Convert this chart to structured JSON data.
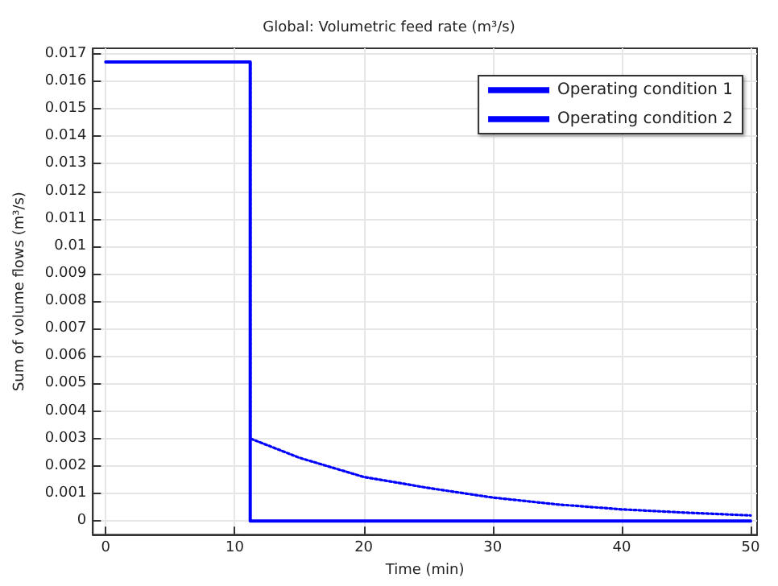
{
  "chart_data": {
    "type": "line",
    "title": "Global: Volumetric feed rate (m³/s)",
    "xlabel": "Time (min)",
    "ylabel": "Sum of volume flows (m³/s)",
    "series": [
      {
        "name": "Operating condition 1",
        "color": "#0000ff",
        "line_style": "solid",
        "x": [
          0,
          11.2,
          11.2,
          50
        ],
        "values": [
          0.0167,
          0.0167,
          0,
          0
        ]
      },
      {
        "name": "Operating condition 2",
        "color": "#0000ff",
        "line_style": "dotted",
        "x": [
          0,
          11.2,
          11.2,
          15,
          20,
          25,
          30,
          35,
          40,
          45,
          50
        ],
        "values": [
          0.0167,
          0.0167,
          0.003,
          0.0023,
          0.0016,
          0.0012,
          0.00085,
          0.0006,
          0.00042,
          0.0003,
          0.0002
        ]
      }
    ],
    "xlim": [
      -1,
      50.5
    ],
    "xticks": [
      0,
      10,
      20,
      30,
      40,
      50
    ],
    "ylim": [
      -0.0005,
      0.0172
    ],
    "yticks": [
      0,
      0.001,
      0.002,
      0.003,
      0.004,
      0.005,
      0.006,
      0.007,
      0.008,
      0.009,
      0.01,
      0.011,
      0.012,
      0.013,
      0.014,
      0.015,
      0.016,
      0.017
    ],
    "grid": true,
    "legend": "top right",
    "marker": "none"
  }
}
